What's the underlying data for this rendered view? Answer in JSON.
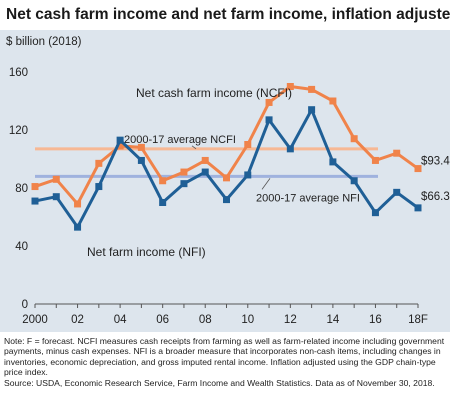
{
  "title": "Net cash farm income and net farm income, inflation adjusted",
  "note": "Note: F = forecast. NCFI measures cash receipts from farming as well as farm-related income including government payments, minus cash expenses. NFI is a broader measure that incorporates non-cash items, including changes in inventories, economic depreciation, and gross imputed rental income. Inflation adjusted using the GDP chain-type price index.",
  "source": "Source: USDA, Economic Research Service, Farm Income and Wealth Statistics. Data as of November 30, 2018.",
  "chart_data": {
    "type": "line",
    "ylabel": "$ billion (2018)",
    "ylim": [
      0,
      160
    ],
    "yticks": [
      0,
      40,
      80,
      120,
      160
    ],
    "grid": false,
    "x": [
      2000,
      2001,
      2002,
      2003,
      2004,
      2005,
      2006,
      2007,
      2008,
      2009,
      2010,
      2011,
      2012,
      2013,
      2014,
      2015,
      2016,
      2017,
      2018
    ],
    "xtick_labels": [
      "2000",
      "02",
      "04",
      "06",
      "08",
      "10",
      "12",
      "14",
      "16",
      "18F"
    ],
    "xtick_values": [
      2000,
      2002,
      2004,
      2006,
      2008,
      2010,
      2012,
      2014,
      2016,
      2018
    ],
    "series": [
      {
        "name": "Net cash farm income (NCFI)",
        "color": "#f0834a",
        "values": [
          81,
          86,
          69,
          97,
          109,
          108,
          85,
          91,
          99,
          87,
          110,
          139,
          150,
          148,
          140,
          114,
          99,
          104,
          93.4
        ],
        "end_label": "$93.4"
      },
      {
        "name": "Net farm income (NFI)",
        "color": "#1f5f96",
        "values": [
          71,
          74,
          53,
          81,
          113,
          99,
          70,
          83,
          91,
          72,
          89,
          127,
          107,
          134,
          98,
          85,
          63,
          77,
          66.3
        ],
        "end_label": "$66.3"
      }
    ],
    "reference_lines": [
      {
        "name": "2000-17 average NCFI",
        "value": 107,
        "color": "#f7b894"
      },
      {
        "name": "2000-17 average NFI",
        "value": 88,
        "color": "#9fb2de"
      }
    ]
  }
}
